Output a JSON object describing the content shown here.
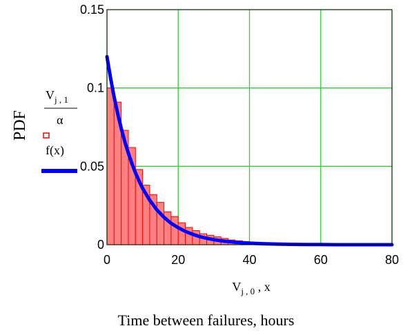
{
  "chart_data": {
    "type": "bar",
    "ylabel": "PDF",
    "caption": "Time between failures, hours",
    "xlim": [
      0,
      80
    ],
    "ylim": [
      0,
      0.15
    ],
    "xticks": [
      "0",
      "20",
      "40",
      "60",
      "80"
    ],
    "yticks": [
      "0",
      "0.05",
      "0.1",
      "0.15"
    ],
    "grid": true,
    "legend_placement": "left",
    "histogram": {
      "name": "Vj,1 / α",
      "bin_width": 2,
      "bin_starts": [
        0,
        2,
        4,
        6,
        8,
        10,
        12,
        14,
        16,
        18,
        20,
        22,
        24,
        26,
        28,
        30,
        32,
        34,
        36,
        38,
        40,
        42,
        44,
        46
      ],
      "values": [
        0.1,
        0.091,
        0.073,
        0.062,
        0.048,
        0.038,
        0.032,
        0.027,
        0.021,
        0.018,
        0.014,
        0.011,
        0.009,
        0.007,
        0.006,
        0.005,
        0.004,
        0.003,
        0.0025,
        0.002,
        0.0015,
        0.001,
        0.0008,
        0.0005
      ]
    },
    "curve": {
      "name": "f(x)",
      "expression": "0.12*exp(-x/8.3)",
      "x": [
        0,
        1,
        2,
        3,
        4,
        5,
        6,
        7,
        8,
        9,
        10,
        12,
        14,
        16,
        18,
        20,
        22,
        24,
        26,
        28,
        30,
        33,
        36,
        40,
        44,
        48,
        52,
        56,
        60,
        64,
        68,
        72,
        76,
        80
      ],
      "y": [
        0.12,
        0.1064,
        0.0944,
        0.0837,
        0.0742,
        0.0658,
        0.0584,
        0.0518,
        0.0459,
        0.0407,
        0.036,
        0.0284,
        0.0222,
        0.0175,
        0.0137,
        0.0108,
        0.0085,
        0.0067,
        0.0052,
        0.0041,
        0.0032,
        0.0022,
        0.0016,
        0.001,
        0.0006,
        0.0004,
        0.0002,
        0.0001,
        0.0001,
        0.0,
        0.0,
        0.0,
        0.0,
        0.0
      ]
    },
    "axis_labels": {
      "x": {
        "v_base": "V",
        "v_sub": "j , 0",
        "v_suffix": " , x"
      },
      "y_top": {
        "v_base": "V",
        "v_sub": "j , 1",
        "denominator": "α"
      },
      "y_bottom": "f(x)"
    },
    "colors": {
      "grid": "#33cc33",
      "bars_fill": "#ff8080",
      "bars_stroke": "#ff0000",
      "curve": "#0000ff",
      "axis": "#000000"
    }
  }
}
